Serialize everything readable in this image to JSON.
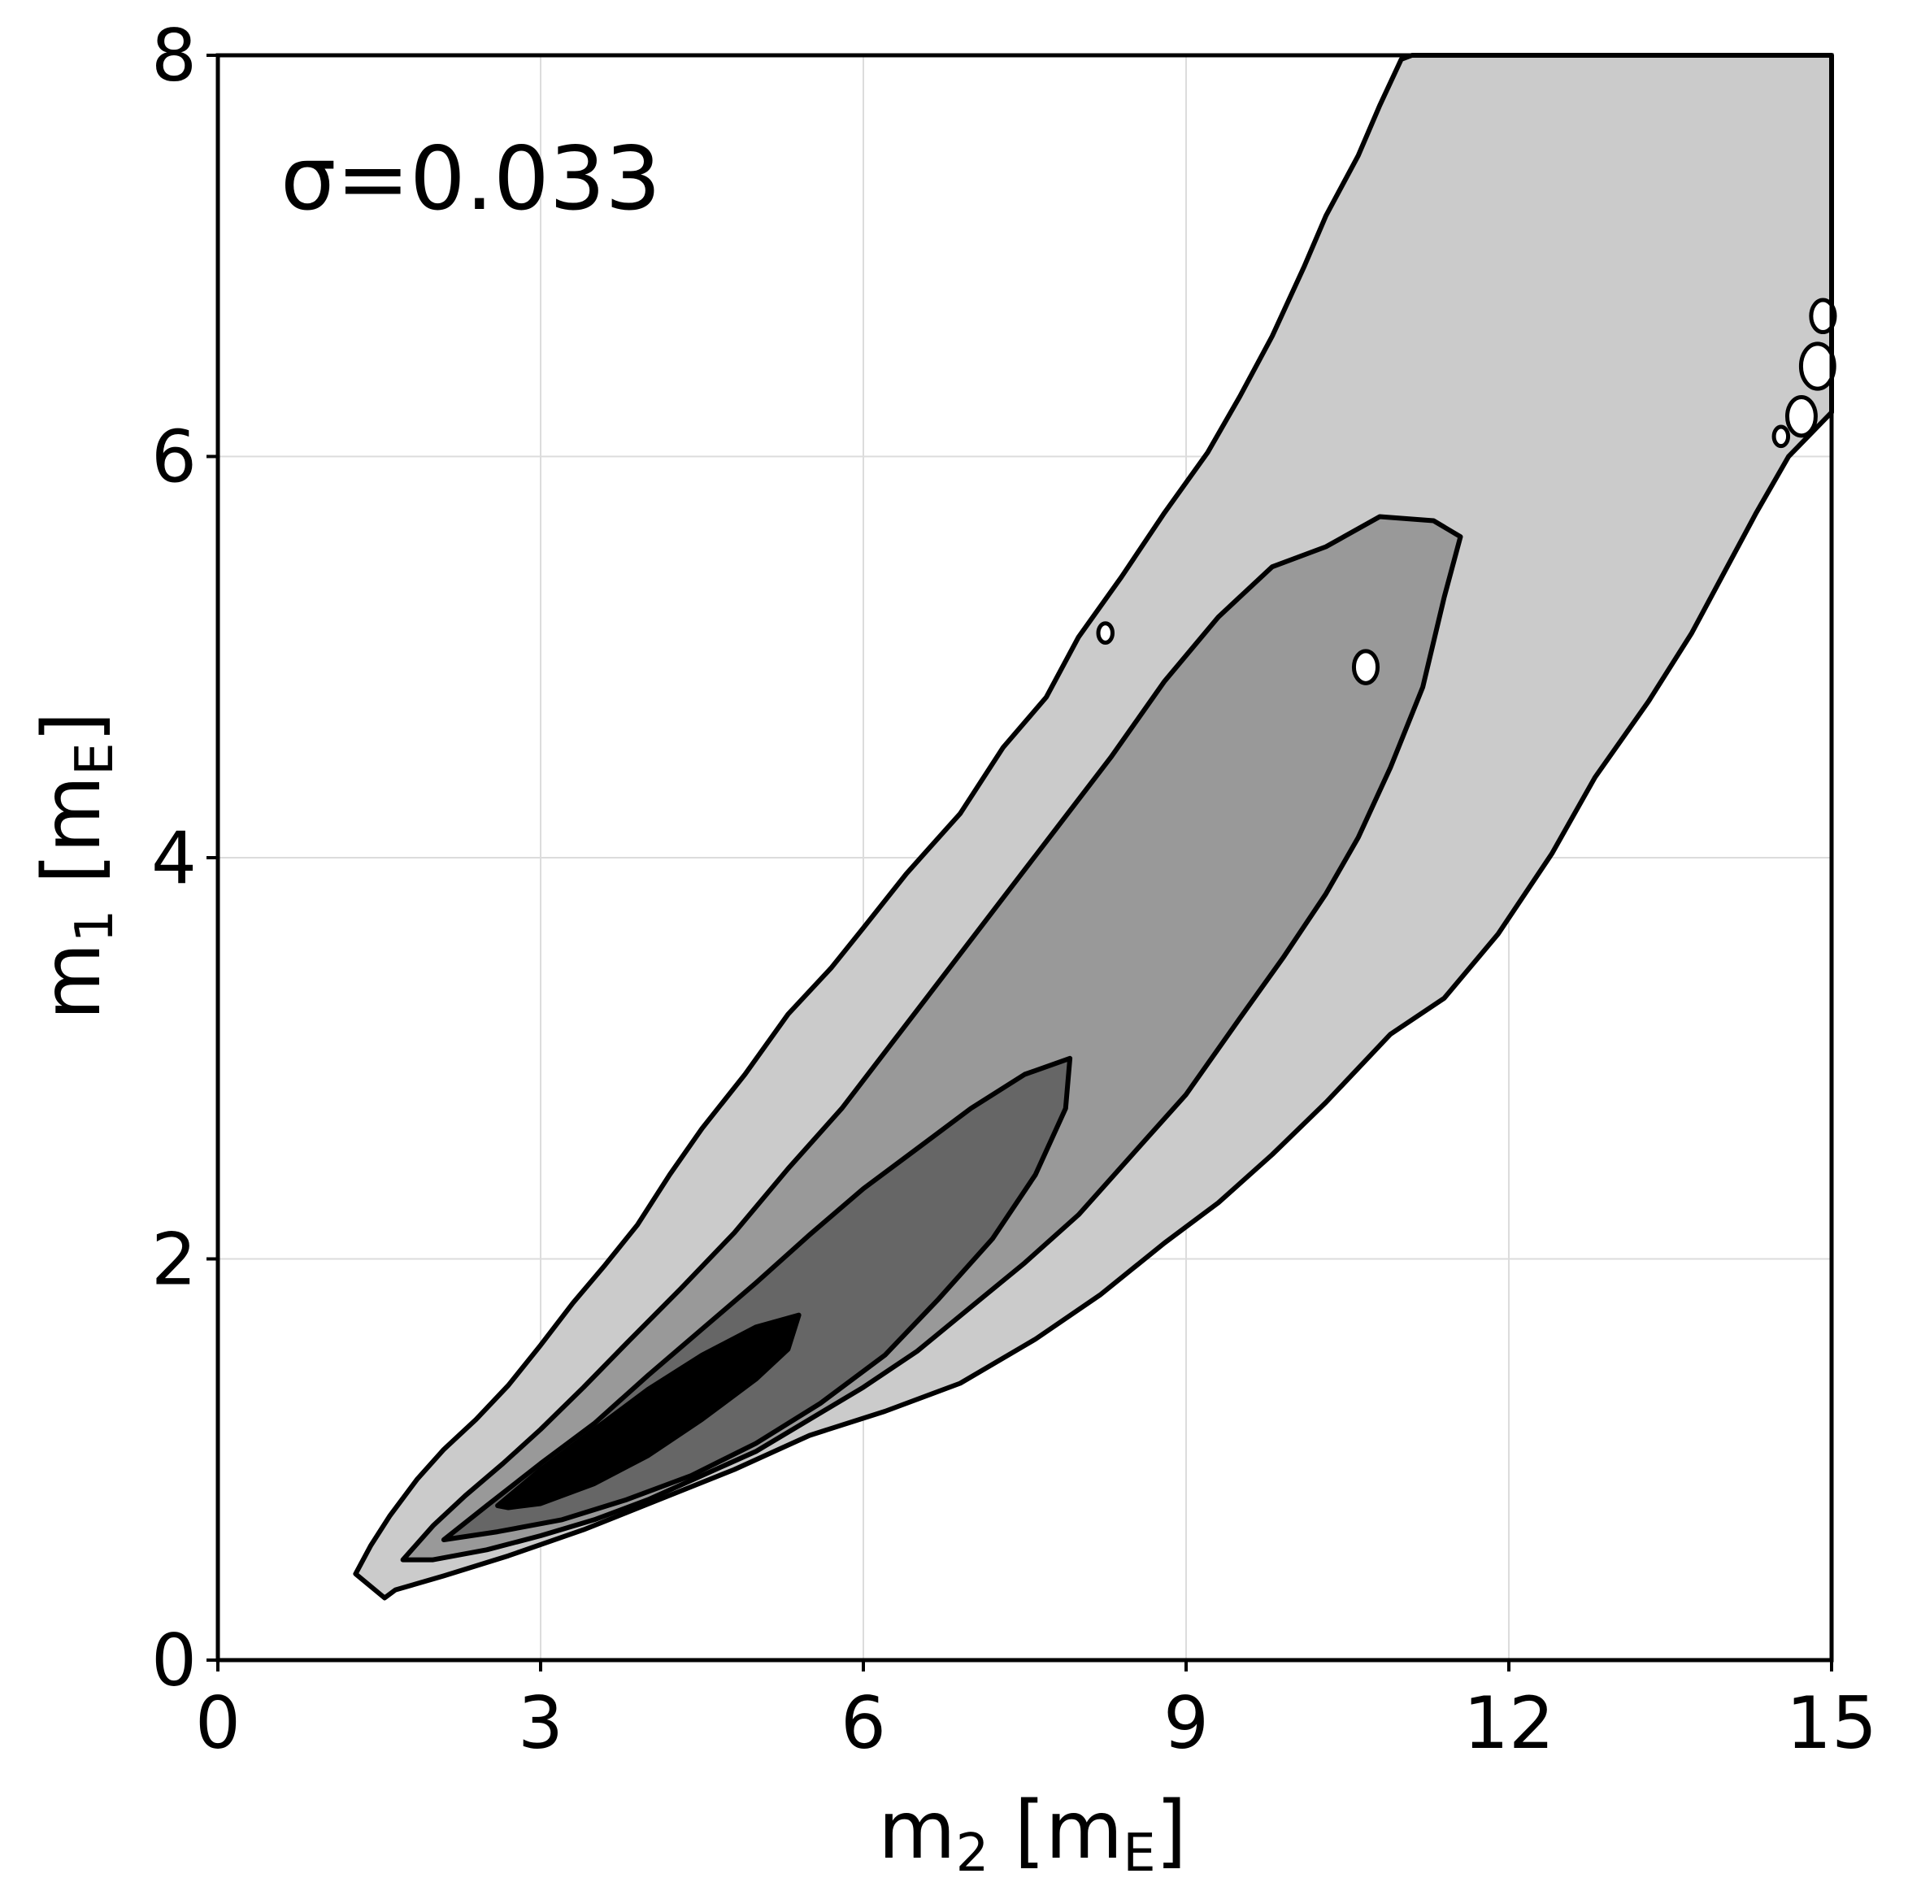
{
  "chart_data": {
    "type": "contour",
    "annotation": "σ=0.033",
    "xlabel": {
      "main": "m",
      "sub": "2",
      "unit_open": " [m",
      "unit_sub": "E",
      "unit_close": "]"
    },
    "ylabel": {
      "main": "m",
      "sub": "1",
      "unit_open": " [m",
      "unit_sub": "E",
      "unit_close": "]"
    },
    "xlim": [
      0,
      15
    ],
    "ylim": [
      0,
      8
    ],
    "x_ticks": [
      0,
      3,
      6,
      9,
      12,
      15
    ],
    "y_ticks": [
      0,
      2,
      4,
      6,
      8
    ],
    "x_tick_labels": [
      "0",
      "3",
      "6",
      "9",
      "12",
      "15"
    ],
    "y_tick_labels": [
      "0",
      "2",
      "4",
      "6",
      "8"
    ],
    "grid": true,
    "colors": {
      "level1": "#cbcbcb",
      "level2": "#999999",
      "level3": "#666666",
      "level4": "#000000",
      "outline": "#000000",
      "grid": "#dcdcdc"
    },
    "levels": [
      {
        "name": "outer",
        "polygon": [
          [
            1.28,
            0.43
          ],
          [
            1.42,
            0.57
          ],
          [
            1.6,
            0.72
          ],
          [
            1.85,
            0.9
          ],
          [
            2.1,
            1.05
          ],
          [
            2.4,
            1.2
          ],
          [
            2.7,
            1.37
          ],
          [
            3.0,
            1.57
          ],
          [
            3.3,
            1.78
          ],
          [
            3.6,
            1.97
          ],
          [
            3.9,
            2.17
          ],
          [
            4.2,
            2.42
          ],
          [
            4.5,
            2.65
          ],
          [
            4.9,
            2.92
          ],
          [
            5.3,
            3.22
          ],
          [
            5.7,
            3.45
          ],
          [
            6.0,
            3.65
          ],
          [
            6.4,
            3.92
          ],
          [
            6.9,
            4.22
          ],
          [
            7.3,
            4.55
          ],
          [
            7.7,
            4.8
          ],
          [
            8.0,
            5.1
          ],
          [
            8.4,
            5.4
          ],
          [
            8.8,
            5.72
          ],
          [
            9.2,
            6.02
          ],
          [
            9.5,
            6.3
          ],
          [
            9.8,
            6.6
          ],
          [
            10.1,
            6.95
          ],
          [
            10.3,
            7.2
          ],
          [
            10.6,
            7.5
          ],
          [
            10.8,
            7.75
          ],
          [
            11.0,
            7.98
          ],
          [
            11.1,
            8.0
          ],
          [
            15.0,
            8.0
          ],
          [
            15.0,
            6.22
          ],
          [
            14.6,
            6.0
          ],
          [
            14.3,
            5.72
          ],
          [
            14.0,
            5.42
          ],
          [
            13.7,
            5.12
          ],
          [
            13.3,
            4.78
          ],
          [
            12.8,
            4.4
          ],
          [
            12.4,
            4.02
          ],
          [
            11.9,
            3.62
          ],
          [
            11.4,
            3.3
          ],
          [
            10.9,
            3.12
          ],
          [
            10.3,
            2.78
          ],
          [
            9.8,
            2.52
          ],
          [
            9.3,
            2.28
          ],
          [
            8.8,
            2.08
          ],
          [
            8.2,
            1.82
          ],
          [
            7.6,
            1.6
          ],
          [
            6.9,
            1.38
          ],
          [
            6.2,
            1.24
          ],
          [
            5.5,
            1.12
          ],
          [
            4.8,
            0.95
          ],
          [
            4.1,
            0.8
          ],
          [
            3.4,
            0.65
          ],
          [
            2.7,
            0.52
          ],
          [
            2.1,
            0.42
          ],
          [
            1.65,
            0.35
          ],
          [
            1.55,
            0.31
          ]
        ]
      },
      {
        "name": "middle",
        "polygon": [
          [
            1.72,
            0.5
          ],
          [
            2.0,
            0.67
          ],
          [
            2.3,
            0.82
          ],
          [
            2.65,
            0.98
          ],
          [
            3.0,
            1.15
          ],
          [
            3.4,
            1.36
          ],
          [
            3.8,
            1.58
          ],
          [
            4.3,
            1.85
          ],
          [
            4.8,
            2.13
          ],
          [
            5.3,
            2.45
          ],
          [
            5.8,
            2.75
          ],
          [
            6.3,
            3.1
          ],
          [
            6.8,
            3.45
          ],
          [
            7.3,
            3.8
          ],
          [
            7.8,
            4.15
          ],
          [
            8.3,
            4.5
          ],
          [
            8.8,
            4.88
          ],
          [
            9.3,
            5.2
          ],
          [
            9.8,
            5.45
          ],
          [
            10.3,
            5.55
          ],
          [
            10.8,
            5.7
          ],
          [
            11.3,
            5.68
          ],
          [
            11.55,
            5.6
          ],
          [
            11.4,
            5.3
          ],
          [
            11.2,
            4.85
          ],
          [
            10.9,
            4.45
          ],
          [
            10.6,
            4.1
          ],
          [
            10.3,
            3.82
          ],
          [
            9.9,
            3.5
          ],
          [
            9.5,
            3.2
          ],
          [
            9.0,
            2.82
          ],
          [
            8.5,
            2.52
          ],
          [
            8.0,
            2.22
          ],
          [
            7.5,
            1.98
          ],
          [
            7.0,
            1.76
          ],
          [
            6.5,
            1.54
          ],
          [
            6.0,
            1.36
          ],
          [
            5.5,
            1.2
          ],
          [
            5.0,
            1.04
          ],
          [
            4.5,
            0.92
          ],
          [
            4.0,
            0.8
          ],
          [
            3.5,
            0.7
          ],
          [
            3.0,
            0.62
          ],
          [
            2.5,
            0.55
          ],
          [
            2.0,
            0.5
          ]
        ]
      },
      {
        "name": "inner",
        "polygon": [
          [
            2.1,
            0.6
          ],
          [
            2.5,
            0.77
          ],
          [
            3.0,
            0.98
          ],
          [
            3.5,
            1.18
          ],
          [
            4.0,
            1.42
          ],
          [
            4.5,
            1.65
          ],
          [
            5.0,
            1.88
          ],
          [
            5.5,
            2.12
          ],
          [
            6.0,
            2.35
          ],
          [
            6.5,
            2.55
          ],
          [
            7.0,
            2.75
          ],
          [
            7.5,
            2.92
          ],
          [
            7.92,
            3.0
          ],
          [
            7.88,
            2.75
          ],
          [
            7.6,
            2.42
          ],
          [
            7.2,
            2.1
          ],
          [
            6.7,
            1.8
          ],
          [
            6.2,
            1.52
          ],
          [
            5.6,
            1.28
          ],
          [
            5.0,
            1.08
          ],
          [
            4.4,
            0.92
          ],
          [
            3.8,
            0.8
          ],
          [
            3.2,
            0.7
          ],
          [
            2.6,
            0.64
          ]
        ]
      },
      {
        "name": "core",
        "polygon": [
          [
            2.6,
            0.77
          ],
          [
            3.0,
            0.95
          ],
          [
            3.5,
            1.15
          ],
          [
            4.0,
            1.35
          ],
          [
            4.5,
            1.52
          ],
          [
            5.0,
            1.66
          ],
          [
            5.4,
            1.72
          ],
          [
            5.3,
            1.55
          ],
          [
            5.0,
            1.4
          ],
          [
            4.5,
            1.2
          ],
          [
            4.0,
            1.02
          ],
          [
            3.5,
            0.88
          ],
          [
            3.0,
            0.78
          ],
          [
            2.7,
            0.76
          ]
        ]
      }
    ],
    "islands": [
      {
        "x": 8.25,
        "y": 5.12,
        "r": 0.03
      },
      {
        "x": 10.67,
        "y": 4.95,
        "r": 0.05
      },
      {
        "x": 14.53,
        "y": 6.1,
        "r": 0.03
      },
      {
        "x": 14.72,
        "y": 6.2,
        "r": 0.06
      },
      {
        "x": 14.87,
        "y": 6.45,
        "r": 0.07
      },
      {
        "x": 14.92,
        "y": 6.7,
        "r": 0.05
      }
    ]
  }
}
